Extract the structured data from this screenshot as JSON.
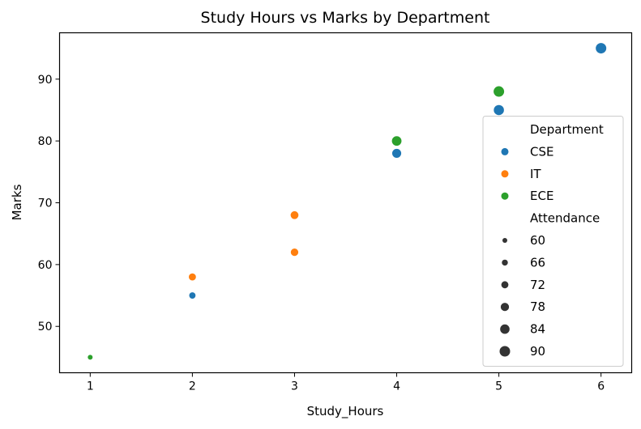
{
  "chart_data": {
    "type": "scatter",
    "title": "Study Hours vs Marks by Department",
    "xlabel": "Study_Hours",
    "ylabel": "Marks",
    "xlim": [
      0.7,
      6.3
    ],
    "ylim": [
      42.5,
      97.5
    ],
    "xticks": [
      1,
      2,
      3,
      4,
      5,
      6
    ],
    "yticks": [
      50,
      60,
      70,
      80,
      90
    ],
    "grid": false,
    "legend_position": "right",
    "hue_title": "Department",
    "size_title": "Attendance",
    "size_levels": [
      60,
      66,
      72,
      78,
      84,
      90
    ],
    "series": [
      {
        "name": "CSE",
        "color": "#1f77b4",
        "points": [
          {
            "x": 2,
            "y": 55,
            "attendance": 68
          },
          {
            "x": 4,
            "y": 78,
            "attendance": 82
          },
          {
            "x": 5,
            "y": 85,
            "attendance": 88
          },
          {
            "x": 6,
            "y": 95,
            "attendance": 92
          }
        ]
      },
      {
        "name": "IT",
        "color": "#ff7f0e",
        "points": [
          {
            "x": 2,
            "y": 58,
            "attendance": 72
          },
          {
            "x": 3,
            "y": 62,
            "attendance": 74
          },
          {
            "x": 3,
            "y": 68,
            "attendance": 76
          }
        ]
      },
      {
        "name": "ECE",
        "color": "#2ca02c",
        "points": [
          {
            "x": 1,
            "y": 45,
            "attendance": 60
          },
          {
            "x": 4,
            "y": 80,
            "attendance": 85
          },
          {
            "x": 5,
            "y": 88,
            "attendance": 90
          }
        ]
      }
    ]
  }
}
